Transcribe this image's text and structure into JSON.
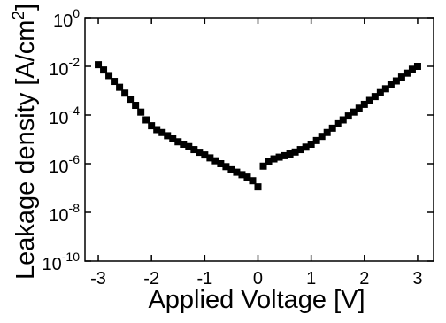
{
  "chart_data": {
    "type": "scatter",
    "x_label": "Applied Voltage [V]",
    "y_label": {
      "text": "Leakage density [A/cm",
      "superscript": "2",
      "end": "]"
    },
    "log_y": true,
    "marker": "square",
    "color": "#000000",
    "xlim": [
      -3.25,
      3.3
    ],
    "ylim": [
      1e-10,
      1
    ],
    "xticks": [
      -3,
      -2,
      -1,
      0,
      1,
      2,
      3
    ],
    "yticks": [
      {
        "value": 1,
        "label": "10",
        "superscript": "0"
      },
      {
        "value": 0.01,
        "label": "10",
        "superscript": "-2"
      },
      {
        "value": 0.0001,
        "label": "10",
        "superscript": "-4"
      },
      {
        "value": 1e-06,
        "label": "10",
        "superscript": "-6"
      },
      {
        "value": 1e-08,
        "label": "10",
        "superscript": "-8"
      },
      {
        "value": 1e-10,
        "label": "10",
        "superscript": "-10"
      }
    ],
    "x": [
      -3.0,
      -2.9,
      -2.8,
      -2.7,
      -2.6,
      -2.5,
      -2.4,
      -2.3,
      -2.2,
      -2.1,
      -2.0,
      -1.9,
      -1.8,
      -1.7,
      -1.6,
      -1.5,
      -1.4,
      -1.3,
      -1.2,
      -1.1,
      -1.0,
      -0.9,
      -0.8,
      -0.7,
      -0.6,
      -0.5,
      -0.4,
      -0.3,
      -0.2,
      -0.1,
      0.0,
      0.1,
      0.2,
      0.3,
      0.4,
      0.5,
      0.6,
      0.7,
      0.8,
      0.9,
      1.0,
      1.1,
      1.2,
      1.3,
      1.4,
      1.5,
      1.6,
      1.7,
      1.8,
      1.9,
      2.0,
      2.1,
      2.2,
      2.3,
      2.4,
      2.5,
      2.6,
      2.7,
      2.8,
      2.9,
      3.0
    ],
    "values": [
      0.0117,
      0.00708,
      0.00417,
      0.0024,
      0.00138,
      0.000794,
      0.000447,
      0.000251,
      0.000132,
      6.31e-05,
      3.63e-05,
      2.51e-05,
      1.91e-05,
      1.41e-05,
      1.05e-05,
      7.94e-06,
      6.31e-06,
      5.01e-06,
      3.8e-06,
      2.95e-06,
      2.29e-06,
      1.74e-06,
      1.32e-06,
      1e-06,
      7.59e-07,
      5.62e-07,
      4.47e-07,
      3.55e-07,
      2.82e-07,
      2e-07,
      1.12e-07,
      7.94e-07,
      1.26e-06,
      1.58e-06,
      1.86e-06,
      2.14e-06,
      2.51e-06,
      3.02e-06,
      3.8e-06,
      4.79e-06,
      6.31e-06,
      8.91e-06,
      1.32e-05,
      1.91e-05,
      2.88e-05,
      4.37e-05,
      6.31e-05,
      9.12e-05,
      0.000132,
      0.000191,
      0.000275,
      0.000398,
      0.000575,
      0.000832,
      0.0012,
      0.00174,
      0.00251,
      0.00363,
      0.00525,
      0.00759,
      0.01
    ]
  }
}
